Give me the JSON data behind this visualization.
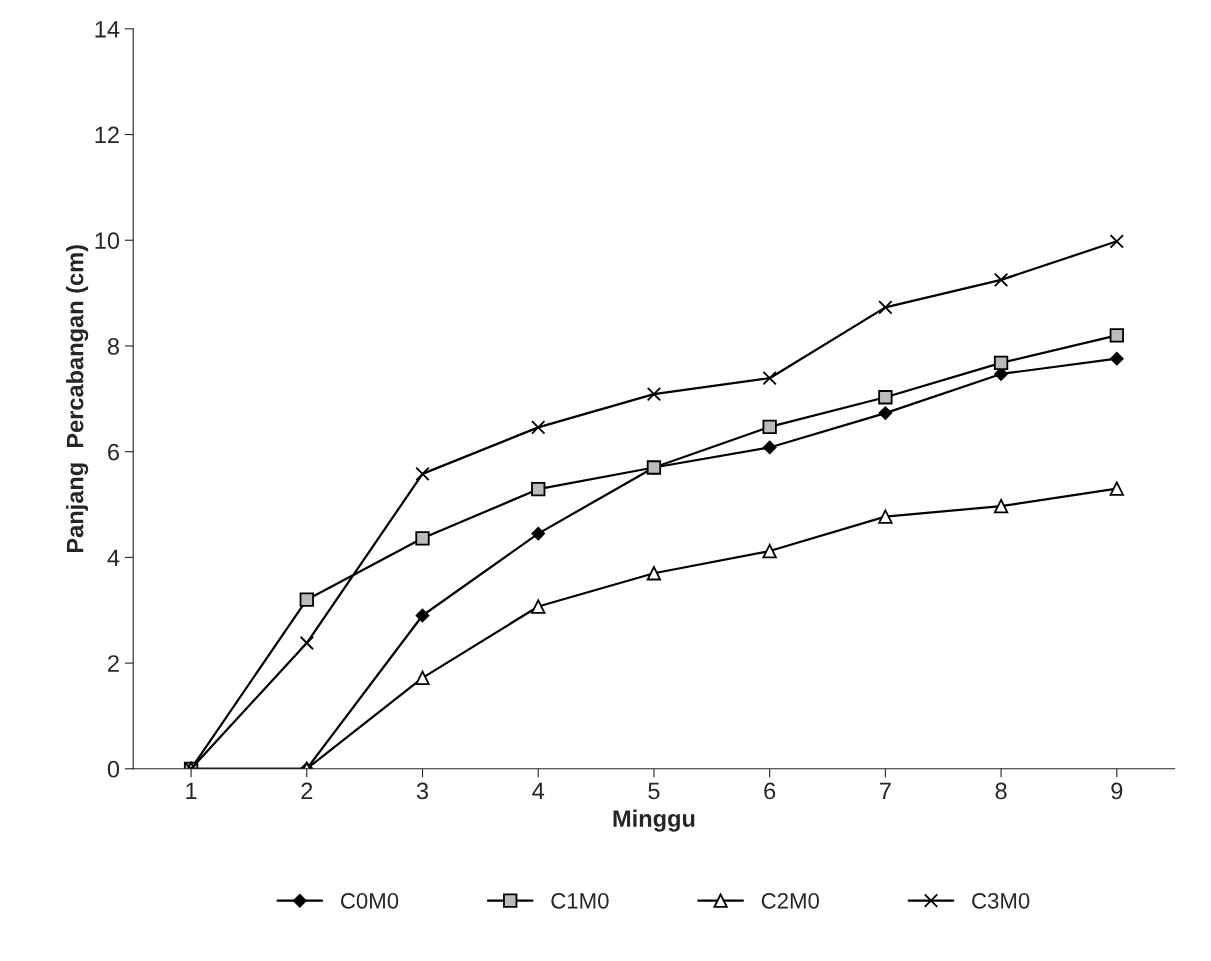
{
  "chart_data": {
    "type": "line",
    "xlabel": "Minggu",
    "ylabel": "Panjang  Percabangan (cm)",
    "categories": [
      "1",
      "2",
      "3",
      "4",
      "5",
      "6",
      "7",
      "8",
      "9"
    ],
    "series": [
      {
        "name": "C0M0",
        "color": "#000000",
        "marker": "diamond",
        "values": [
          0,
          0,
          2.9,
          4.45,
          5.7,
          6.08,
          6.73,
          7.47,
          7.76
        ]
      },
      {
        "name": "C1M0",
        "color": "#000000",
        "marker": "square",
        "values": [
          0,
          3.2,
          4.36,
          5.29,
          5.7,
          6.47,
          7.03,
          7.68,
          8.2
        ]
      },
      {
        "name": "C2M0",
        "color": "#000000",
        "marker": "triangle",
        "values": [
          0,
          0,
          1.72,
          3.07,
          3.7,
          4.12,
          4.77,
          4.97,
          5.3
        ]
      },
      {
        "name": "C3M0",
        "color": "#000000",
        "marker": "cross",
        "values": [
          0,
          2.38,
          5.58,
          6.46,
          7.09,
          7.39,
          8.73,
          9.25,
          9.98
        ]
      }
    ],
    "ylim": [
      0,
      14
    ],
    "yticks": [
      0,
      2,
      4,
      6,
      8,
      10,
      12,
      14
    ],
    "grid": false,
    "legend": "bottom",
    "line_style": "solid"
  }
}
